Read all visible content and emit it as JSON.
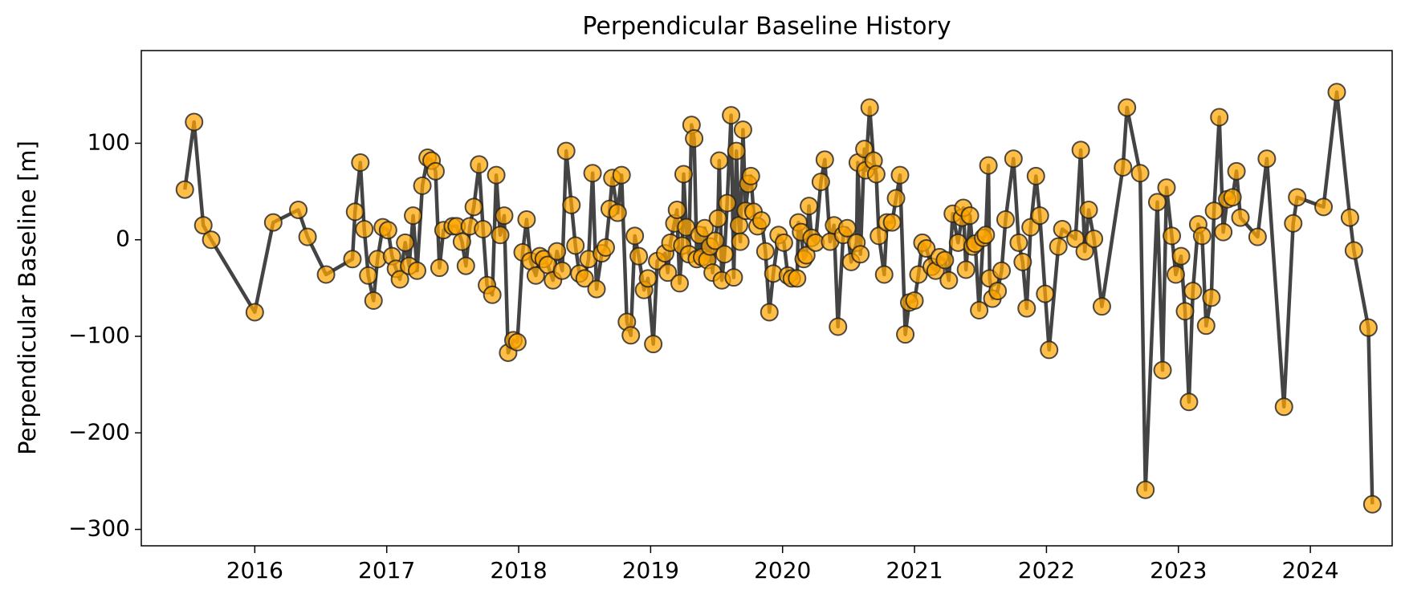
{
  "chart_data": {
    "type": "line",
    "title": "Perpendicular Baseline History",
    "ylabel": "Perpendicular Baseline [m]",
    "xlim": [
      2015.14,
      2024.62
    ],
    "xticks": [
      2016,
      2017,
      2018,
      2019,
      2020,
      2021,
      2022,
      2023,
      2024
    ],
    "ylim": [
      -317,
      196
    ],
    "yticks": [
      {
        "value": -300,
        "label": "−300"
      },
      {
        "value": -200,
        "label": "−200"
      },
      {
        "value": -100,
        "label": "−100"
      },
      0,
      100
    ],
    "grid": false,
    "color": "#ffa500",
    "line_color": "#444444",
    "x": [
      2015.47,
      2015.54,
      2015.61,
      2015.67,
      2016.0,
      2016.14,
      2016.33,
      2016.4,
      2016.54,
      2016.74,
      2016.76,
      2016.8,
      2016.83,
      2016.86,
      2016.9,
      2016.93,
      2016.97,
      2017.01,
      2017.04,
      2017.07,
      2017.1,
      2017.14,
      2017.17,
      2017.2,
      2017.23,
      2017.27,
      2017.31,
      2017.34,
      2017.37,
      2017.4,
      2017.43,
      2017.5,
      2017.53,
      2017.57,
      2017.6,
      2017.63,
      2017.66,
      2017.7,
      2017.73,
      2017.76,
      2017.8,
      2017.83,
      2017.86,
      2017.89,
      2017.92,
      2017.96,
      2017.99,
      2018.03,
      2018.06,
      2018.09,
      2018.13,
      2018.16,
      2018.19,
      2018.22,
      2018.26,
      2018.29,
      2018.33,
      2018.36,
      2018.4,
      2018.43,
      2018.46,
      2018.5,
      2018.53,
      2018.56,
      2018.59,
      2018.63,
      2018.66,
      2018.69,
      2018.71,
      2018.75,
      2018.78,
      2018.82,
      2018.85,
      2018.88,
      2018.91,
      2018.95,
      2018.98,
      2019.02,
      2019.05,
      2019.11,
      2019.13,
      2019.15,
      2019.18,
      2019.2,
      2019.22,
      2019.24,
      2019.25,
      2019.27,
      2019.29,
      2019.31,
      2019.33,
      2019.35,
      2019.37,
      2019.39,
      2019.41,
      2019.43,
      2019.45,
      2019.47,
      2019.49,
      2019.51,
      2019.52,
      2019.54,
      2019.56,
      2019.58,
      2019.61,
      2019.63,
      2019.65,
      2019.67,
      2019.68,
      2019.7,
      2019.72,
      2019.74,
      2019.76,
      2019.78,
      2019.81,
      2019.84,
      2019.87,
      2019.9,
      2019.93,
      2019.97,
      2020.01,
      2020.04,
      2020.07,
      2020.11,
      2020.12,
      2020.14,
      2020.16,
      2020.18,
      2020.2,
      2020.22,
      2020.25,
      2020.29,
      2020.32,
      2020.36,
      2020.39,
      2020.42,
      2020.46,
      2020.49,
      2020.52,
      2020.56,
      2020.57,
      2020.59,
      2020.62,
      2020.63,
      2020.66,
      2020.69,
      2020.71,
      2020.73,
      2020.77,
      2020.79,
      2020.83,
      2020.86,
      2020.89,
      2020.93,
      2020.96,
      2021.0,
      2021.03,
      2021.06,
      2021.09,
      2021.13,
      2021.16,
      2021.19,
      2021.23,
      2021.26,
      2021.29,
      2021.33,
      2021.36,
      2021.37,
      2021.39,
      2021.42,
      2021.44,
      2021.46,
      2021.49,
      2021.52,
      2021.54,
      2021.56,
      2021.57,
      2021.59,
      2021.63,
      2021.66,
      2021.69,
      2021.75,
      2021.79,
      2021.82,
      2021.85,
      2021.88,
      2021.92,
      2021.95,
      2021.99,
      2022.02,
      2022.09,
      2022.12,
      2022.22,
      2022.26,
      2022.29,
      2022.32,
      2022.36,
      2022.42,
      2022.58,
      2022.61,
      2022.71,
      2022.75,
      2022.84,
      2022.88,
      2022.91,
      2022.95,
      2022.98,
      2023.02,
      2023.05,
      2023.08,
      2023.11,
      2023.15,
      2023.18,
      2023.21,
      2023.25,
      2023.27,
      2023.31,
      2023.34,
      2023.37,
      2023.41,
      2023.44,
      2023.47,
      2023.6,
      2023.67,
      2023.8,
      2023.87,
      2023.9,
      2024.1,
      2024.2,
      2024.3,
      2024.33,
      2024.44,
      2024.47
    ],
    "values": [
      52,
      122,
      15,
      0,
      -75,
      18,
      31,
      3,
      -36,
      -20,
      29,
      80,
      11,
      -37,
      -63,
      -20,
      13,
      10,
      -17,
      -30,
      -41,
      -3,
      -27,
      25,
      -32,
      56,
      85,
      82,
      71,
      -29,
      10,
      14,
      14,
      -2,
      -27,
      14,
      34,
      78,
      11,
      -47,
      -57,
      67,
      5,
      25,
      -117,
      -104,
      -106,
      -13,
      21,
      -22,
      -37,
      -17,
      -20,
      -26,
      -42,
      -12,
      -32,
      92,
      36,
      -6,
      -35,
      -40,
      -20,
      69,
      -51,
      -14,
      -8,
      32,
      64,
      28,
      67,
      -85,
      -99,
      4,
      -17,
      -52,
      -40,
      -108,
      -22,
      -14,
      -34,
      -3,
      17,
      31,
      -45,
      -6,
      68,
      13,
      -15,
      119,
      105,
      -20,
      5,
      -18,
      12,
      -21,
      -7,
      -34,
      -1,
      22,
      82,
      -42,
      -15,
      38,
      129,
      -39,
      92,
      15,
      -2,
      114,
      30,
      58,
      66,
      29,
      14,
      20,
      -12,
      -75,
      -35,
      5,
      -3,
      -37,
      -40,
      -40,
      18,
      8,
      -20,
      -16,
      35,
      2,
      -3,
      60,
      83,
      -2,
      15,
      -90,
      5,
      12,
      -23,
      -3,
      80,
      -15,
      94,
      72,
      137,
      82,
      68,
      4,
      -36,
      18,
      18,
      43,
      67,
      -98,
      -65,
      -63,
      -36,
      -3,
      -9,
      -28,
      -32,
      -18,
      -21,
      -42,
      27,
      -3,
      23,
      33,
      -31,
      25,
      -7,
      -4,
      -73,
      2,
      5,
      77,
      -40,
      -61,
      -53,
      -32,
      21,
      84,
      -3,
      -23,
      -71,
      13,
      66,
      25,
      -56,
      -114,
      -7,
      11,
      1,
      93,
      -12,
      31,
      1,
      -69,
      75,
      137,
      69,
      -259,
      39,
      -135,
      54,
      4,
      -36,
      -17,
      -74,
      -168,
      -53,
      16,
      4,
      -89,
      -60,
      30,
      127,
      8,
      42,
      44,
      71,
      23,
      3,
      84,
      -173,
      17,
      44,
      34,
      153,
      23,
      -11,
      -91,
      -274
    ]
  }
}
